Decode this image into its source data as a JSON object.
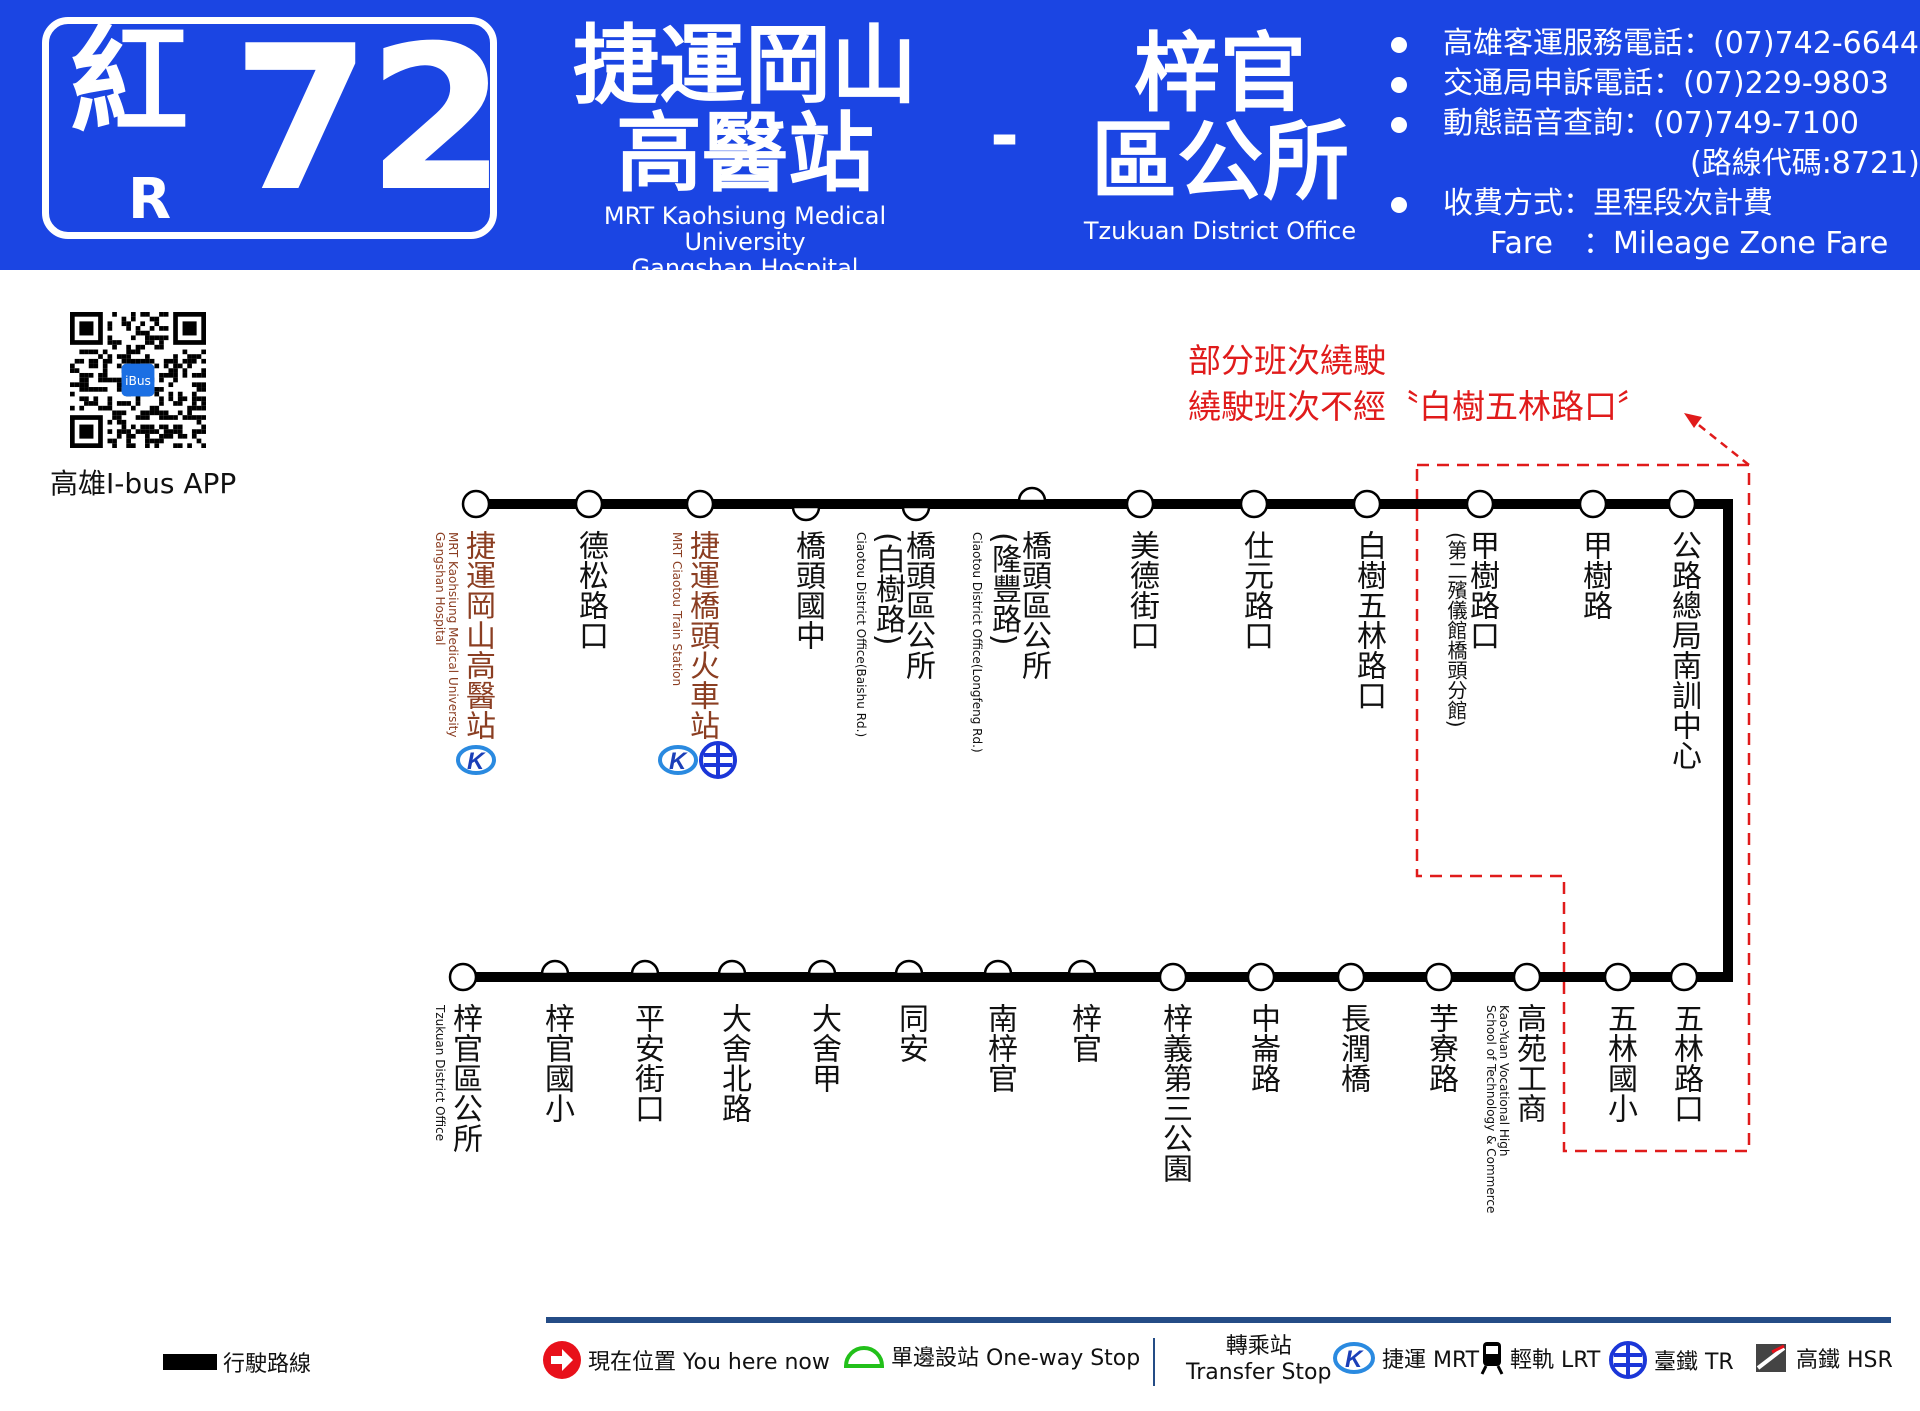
{
  "header": {
    "route_prefix": "紅",
    "route_prefix_en": "R",
    "route_number": "72",
    "origin_zh_line1": "捷運岡山",
    "origin_zh_line2": "高醫站",
    "origin_en_line1": "MRT Kaohsiung Medical University",
    "origin_en_line2": "Gangshan Hospital",
    "separator": "-",
    "destination_zh_line1": "梓官",
    "destination_zh_line2": "區公所",
    "destination_en": "Tzukuan District Office",
    "info": [
      "高雄客運服務電話：(07)742-6644",
      "交通局申訴電話：(07)229-9803",
      "動態語音查詢：(07)749-7100",
      "(路線代碼:8721)",
      "收費方式：里程段次計費",
      "Fare　：Mileage Zone Fare"
    ]
  },
  "app": {
    "label": "高雄I-bus APP",
    "qr_badge": "iBus"
  },
  "detour_note": {
    "line1": "部分班次繞駛",
    "line2": "繞駛班次不經〝白樹五林路口〞",
    "color": "#e01b1b"
  },
  "top_stops": [
    {
      "name": "捷運岡山高醫站",
      "en": "MRT Kaohsiung Medical University\nGangshan Hospital",
      "type": "full",
      "highlight": true,
      "transfers": [
        "mrt"
      ]
    },
    {
      "name": "德松路口",
      "type": "full"
    },
    {
      "name": "捷運橋頭火車站",
      "en": "MRT Ciaotou Train Station",
      "type": "full",
      "highlight": true,
      "transfers": [
        "mrt",
        "tr"
      ]
    },
    {
      "name": "橋頭國中",
      "type": "half-down"
    },
    {
      "name": "橋頭區公所",
      "sub": "(白樹路)",
      "en": "Ciaotou District Office(Baishu Rd.)",
      "type": "half-down"
    },
    {
      "name": "橋頭區公所",
      "sub": "(隆豐路)",
      "en": "Ciaotou District Office(Longfeng Rd.)",
      "type": "half-up"
    },
    {
      "name": "美德街口",
      "type": "full"
    },
    {
      "name": "仕元路口",
      "type": "full"
    },
    {
      "name": "白樹五林路口",
      "type": "full"
    },
    {
      "name": "甲樹路口",
      "sub": "(第二殯儀館橋頭分館)",
      "type": "full"
    },
    {
      "name": "甲樹路",
      "type": "full"
    },
    {
      "name": "公路總局南訓中心",
      "type": "full"
    }
  ],
  "bottom_stops": [
    {
      "name": "梓官區公所",
      "en": "Tzukuan District Office",
      "type": "full"
    },
    {
      "name": "梓官國小",
      "type": "half-up"
    },
    {
      "name": "平安街口",
      "type": "half-up"
    },
    {
      "name": "大舍北路",
      "type": "half-up"
    },
    {
      "name": "大舍甲",
      "type": "half-up"
    },
    {
      "name": "同安",
      "type": "half-up"
    },
    {
      "name": "南梓官",
      "type": "half-up"
    },
    {
      "name": "梓官",
      "type": "half-up"
    },
    {
      "name": "梓義第三公園",
      "type": "full"
    },
    {
      "name": "中崙路",
      "type": "full"
    },
    {
      "name": "長潤橋",
      "type": "full"
    },
    {
      "name": "芋寮路",
      "type": "full"
    },
    {
      "name": "高苑工商",
      "en": "Kao-Yuan Vocational High\nSchool of Technology & Commerce",
      "type": "full"
    },
    {
      "name": "五林國小",
      "type": "full"
    },
    {
      "name": "五林路口",
      "type": "full"
    }
  ],
  "legend": {
    "route_line": "行駛路線",
    "you_are_here": "現在位置 You here now",
    "one_way_stop": "單邊設站 One-way Stop",
    "transfer_zh": "轉乘站",
    "transfer_en": "Transfer Stop",
    "mrt": "捷運 MRT",
    "lrt": "輕軌 LRT",
    "tr": "臺鐵 TR",
    "hsr": "高鐵 HSR"
  },
  "colors": {
    "header_bg": "#1b45e3",
    "route_line": "#000000",
    "detour": "#e01b1b",
    "station_text": "#8b3e22",
    "one_way": "#22c01a",
    "you_here": "#e8101a",
    "footer_line": "#244c86"
  }
}
